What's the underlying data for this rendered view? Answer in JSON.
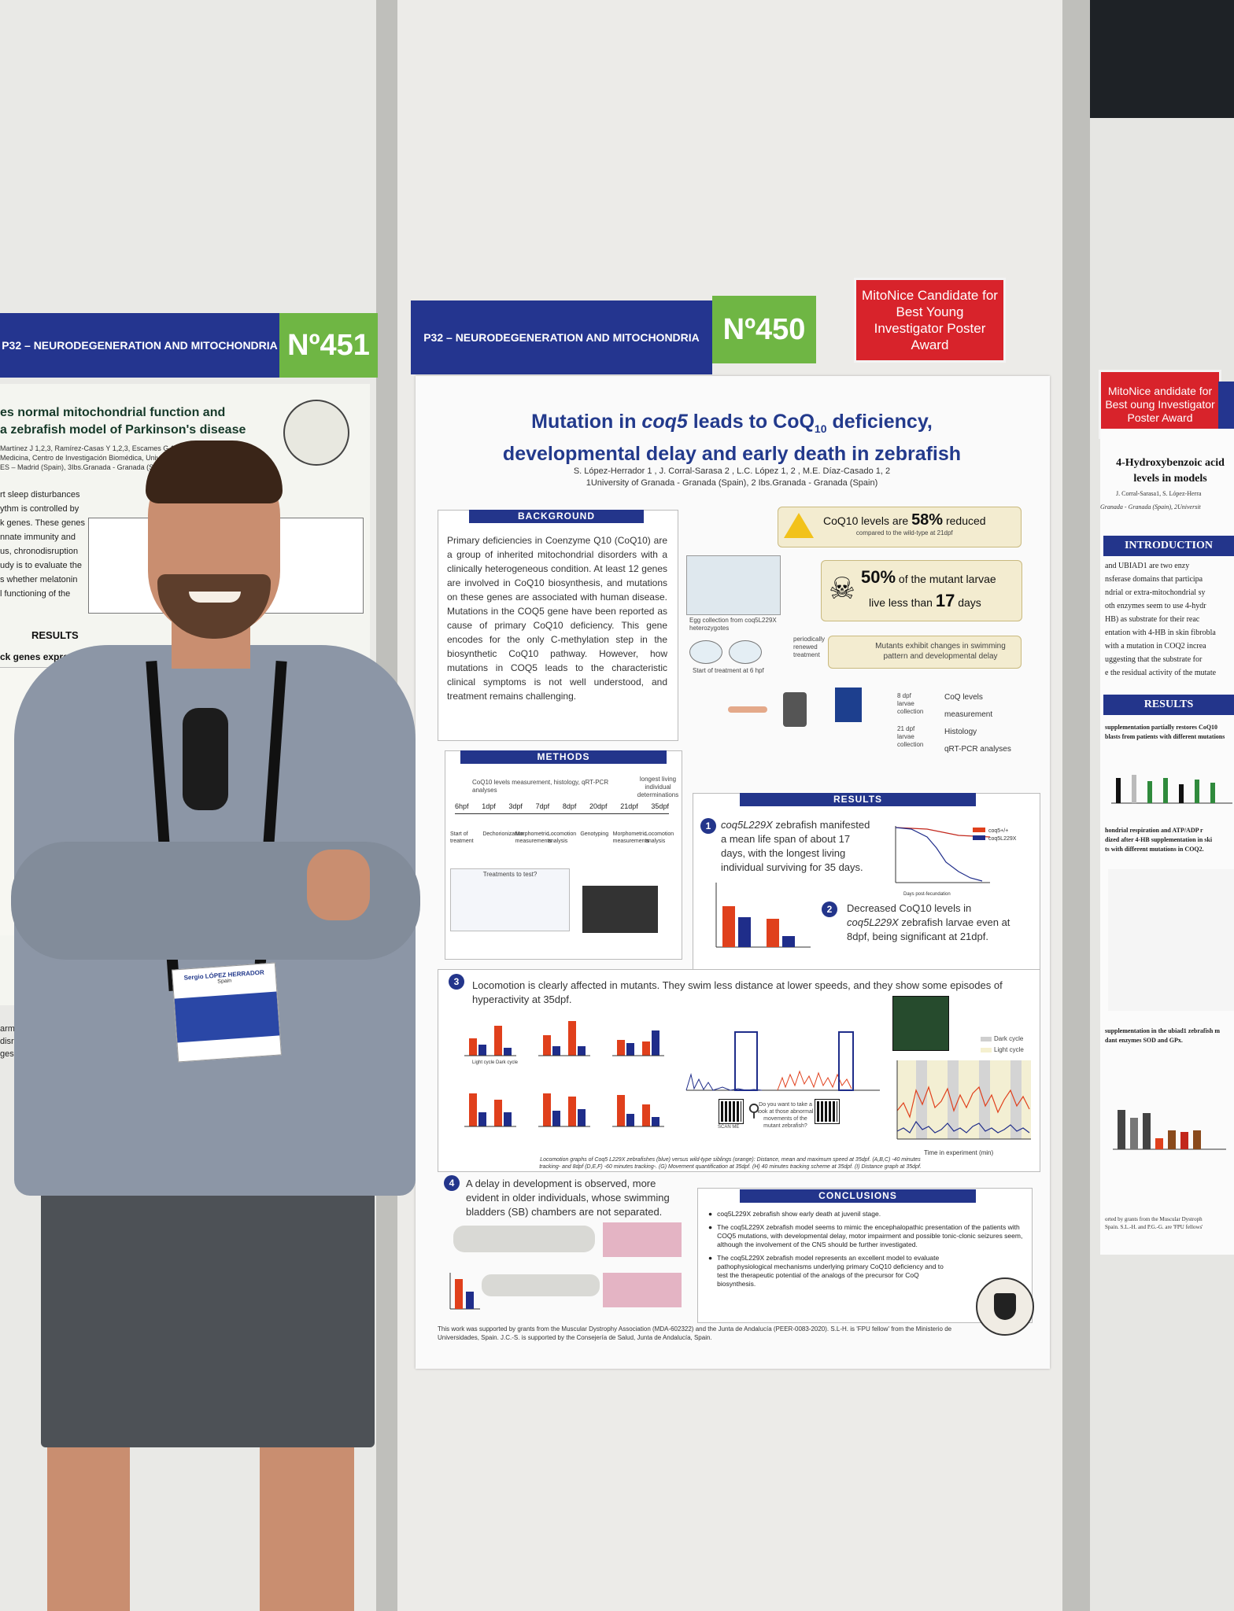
{
  "left_poster": {
    "session": "P32 – NEURODEGENERATION AND MITOCHONDRIA",
    "number": "Nº451",
    "title_line1": "es normal mitochondrial function and",
    "title_line2": "a zebrafish model of Parkinson's disease",
    "authors_line1": "Martínez J 1,2,3, Ramírez-Casas Y 1,2,3, Escames G 1,2,",
    "authors_line2": "Medicina, Centro de Investigación Biomédica, Univer",
    "authors_line3": "ES – Madrid (Spain), 3Ibs.Granada - Granada (Spain)",
    "intro_lines": [
      "rt sleep disturbances",
      "ythm is controlled by",
      "k genes. These genes",
      "nnate immunity and",
      "us, chronodisruption",
      "udy is to evaluate the",
      "s whether melatonin",
      "l functioning of the"
    ],
    "results_label": "RESULTS",
    "results_sub": "ck genes expression rhythm by",
    "footer_lines": [
      "arment paralle",
      "disruption of cl",
      "ges."
    ],
    "badge_name": "Sergio LÓPEZ HERRADOR",
    "badge_country": "Spain"
  },
  "center": {
    "session": "P32 – NEURODEGENERATION AND MITOCHONDRIA",
    "number": "Nº450",
    "award": "MitoNice Candidate for Best Young Investigator Poster Award",
    "poster": {
      "title_line1_a": "Mutation in ",
      "title_line1_gene": "coq5",
      "title_line1_b": " leads to CoQ",
      "title_line1_sub": "10",
      "title_line1_c": " deficiency,",
      "title_line2": "developmental delay and early death in zebrafish",
      "authors": "S. López-Herrador 1 , J. Corral-Sarasa 2 , L.C. López 1, 2 , M.E. Díaz-Casado 1, 2",
      "affiliations": "1University of Granada - Granada (Spain), 2 Ibs.Granada - Granada (Spain)",
      "background_label": "BACKGROUND",
      "background_text": "Primary deficiencies in Coenzyme Q10 (CoQ10) are a group of inherited mitochondrial disorders with a clinically heterogeneous condition. At least 12 genes are involved in CoQ10 biosynthesis, and mutations on these genes are associated with human disease. Mutations in the COQ5 gene have been reported as cause of primary CoQ10 deficiency. This gene encodes for the only C-methylation step in the biosynthetic CoQ10 pathway. However, how mutations in COQ5 leads to the characteristic clinical symptoms is not well understood, and treatment remains challenging.",
      "stat1_a": "CoQ10 levels are ",
      "stat1_pct": "58%",
      "stat1_b": " reduced",
      "stat1_c": "compared to the wild-type at 21dpf",
      "stat2_pct": "50%",
      "stat2_a": " of the mutant larvae",
      "stat2_b": "live less than ",
      "stat2_days": "17",
      "stat2_c": " days",
      "stat3": "Mutants exhibit changes in swimming pattern and developmental delay",
      "egg_label": "Egg collection from coq5L229X heterozygotes",
      "treatment_label": "Start of treatment at 6 hpf",
      "renewed": "periodically renewed treatment",
      "analyses": [
        "CoQ levels measurement",
        "Histology",
        "qRT-PCR analyses"
      ],
      "collect": [
        "8 dpf larvae collection",
        "21 dpf larvae collection"
      ],
      "methods_label": "METHODS",
      "methods_top": "CoQ10 levels measurement, histology, qRT-PCR analyses",
      "methods_longest": "longest living individual determinations",
      "timeline": [
        "6hpf",
        "1dpf",
        "3dpf",
        "7dpf",
        "8dpf",
        "20dpf",
        "21dpf",
        "35dpf"
      ],
      "methods_steps": [
        "Start of treatment",
        "Dechorionization",
        "Morphometric measurements",
        "Locomotion analysis",
        "Genotyping",
        "Morphometric measurements",
        "Locomotion analysis"
      ],
      "treatments_label": "Treatments to test?",
      "results_label": "RESULTS",
      "r1_a": "coq5L229X",
      "r1_b": " zebrafish manifested a mean life span of about 17 days, with the longest living individual surviving for 35 days.",
      "r2_a": "Decreased CoQ10 levels in ",
      "r2_b": "coq5L229X",
      "r2_c": " zebrafish larvae even at 8dpf, being significant at 21dpf.",
      "r3": "Locomotion is clearly affected in mutants. They swim less distance at lower speeds, and they show some episodes of hyperactivity at 35dpf.",
      "r4": "A delay in development is observed, more evident in older individuals, whose swimming bladders (SB) chambers are not separated.",
      "legend": [
        "coq5+/+",
        "coq5L229X"
      ],
      "survival_x": "Days post-fecundation",
      "survival_y": "Percent survival",
      "loco_x": "Time in experiment (min)",
      "loco_legend": [
        "Dark cycle",
        "Light cycle"
      ],
      "cycle_labels": [
        "Light cycle",
        "Dark cycle"
      ],
      "loco_caption": "Locomotion graphs of Coq5 L229X zebrafishes (blue) versus wild-type siblings (orange): Distance, mean and maximum speed at 35dpf. (A,B,C) -40 minutes tracking- and 8dpf (D,E,F) -60 minutes tracking-. (G) Movement quantification at 35dpf. (H) 40 minutes tracking scheme at 35dpf. (I) Distance graph at 35dpf.",
      "qr_text": "Do you want to take a look at those abnormal movements of the mutant zebrafish?",
      "scan_me": "SCAN ME",
      "conclusions_label": "CONCLUSIONS",
      "conclusions": [
        "coq5L229X zebrafish show early death at juvenil stage.",
        "The coq5L229X zebrafish model seems to mimic the encephalopathic presentation of the patients with COQ5 mutations, with developmental delay, motor impairment and possible tonic-clonic seizures seem, although the involvement of the CNS should be further investigated.",
        "The coq5L229X zebrafish model represents an excellent model to evaluate pathophysiological mechanisms underlying primary CoQ10 deficiency and to test the therapeutic potential of the analogs of the precursor for CoQ biosynthesis."
      ],
      "funding": "This work was supported by grants from the Muscular Dystrophy Association (MDA-602322) and the Junta de Andalucía (PEER-0083-2020). S.L-H. is 'FPU fellow' from the Ministerio de Universidades, Spain. J.C.-S. is supported by the Consejería de Salud, Junta de Andalucía, Spain."
    }
  },
  "right_poster": {
    "award": "MitoNice andidate for Best oung Investigator Poster Award",
    "title_line1": "4-Hydroxybenzoic acid",
    "title_line2": "levels in models",
    "authors": "J. Corral-Sarasa1, S. López-Herra",
    "affil": "Granada - Granada (Spain), 2Universit",
    "intro_label": "INTRODUCTION",
    "intro_lines": [
      "and UBIAD1 are two enzy",
      "nsferase domains that participa",
      "ndrial or extra-mitochondrial sy",
      "oth enzymes seem to use 4-hydr",
      "HB) as substrate for their reac",
      "entation with 4-HB in skin fibrobla",
      "with a mutation in COQ2 increa",
      "uggesting that the substrate for",
      "e the residual activity of the mutate"
    ],
    "results_label": "RESULTS",
    "results_lines": [
      "supplementation partially restores CoQ10",
      "blasts from patients with different mutations"
    ],
    "mid_lines": [
      "hondrial respiration and ATP/ADP r",
      "dized after 4-HB supplementation in ski",
      "ts with different mutations in COQ2."
    ],
    "low_lines": [
      "supplementation in the ubiad1 zebrafish m",
      "dant enzymes SOD and GPx."
    ],
    "foot_lines": [
      "orted by grants from the Muscular Dystroph",
      "Spain. S.L.-H. and P.G.-G. are 'FPU fellows'"
    ]
  },
  "colors": {
    "navy": "#24358f",
    "green": "#6fb644",
    "red": "#d8232b",
    "orange": "#e0401c",
    "blue": "#1f2d8a"
  }
}
